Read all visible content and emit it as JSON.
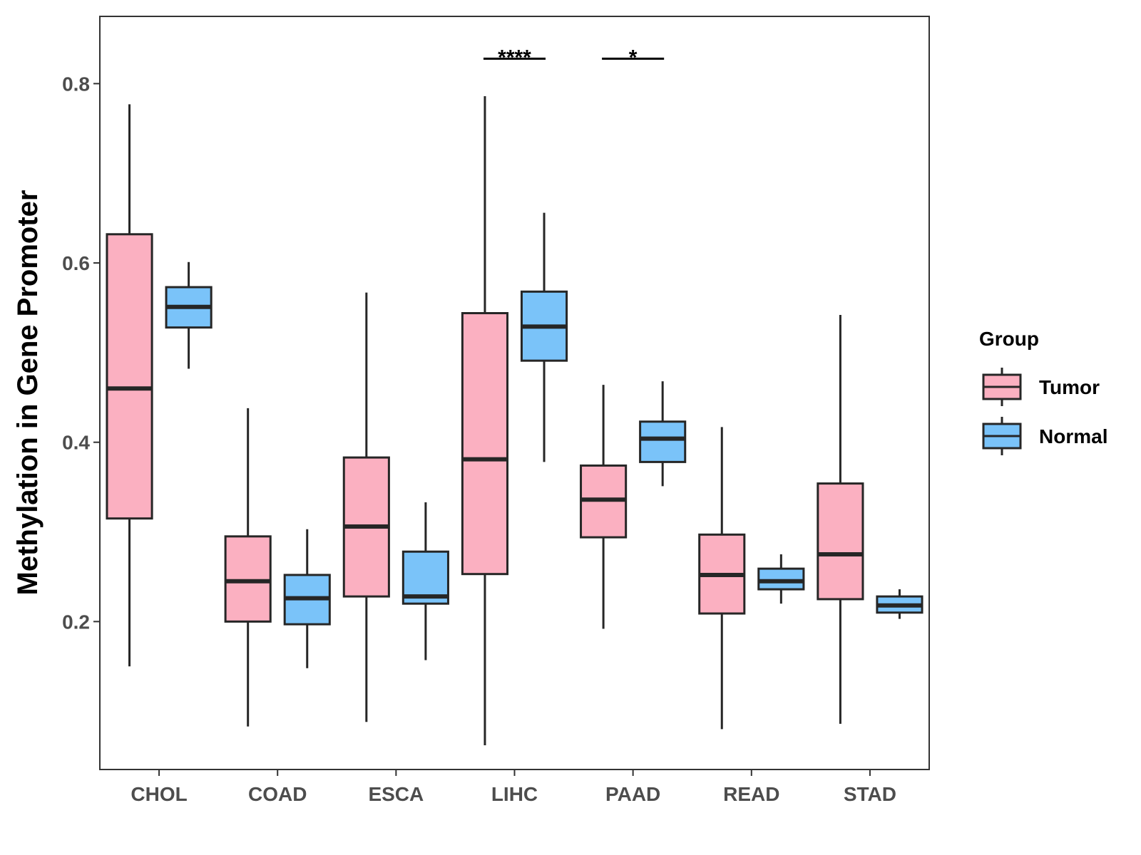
{
  "chart_data": {
    "type": "boxplot",
    "title": "",
    "xlabel": "",
    "ylabel": "Methylation in Gene Promoter",
    "ylim": [
      0.035,
      0.875
    ],
    "yticks": [
      0.2,
      0.4,
      0.6,
      0.8
    ],
    "ytick_labels": [
      "0.2",
      "0.4",
      "0.6",
      "0.8"
    ],
    "grid": false,
    "legend": {
      "title": "Group",
      "position": "right",
      "entries": [
        {
          "name": "Tumor",
          "color": "#fbb0c1"
        },
        {
          "name": "Normal",
          "color": "#7ac3f9"
        }
      ]
    },
    "outline_color": "#262626",
    "categories": [
      "CHOL",
      "COAD",
      "ESCA",
      "LIHC",
      "PAAD",
      "READ",
      "STAD"
    ],
    "series": [
      {
        "name": "Tumor",
        "color": "#fbb0c1",
        "boxes": [
          {
            "min": 0.15,
            "q1": 0.315,
            "median": 0.46,
            "q3": 0.632,
            "max": 0.777
          },
          {
            "min": 0.083,
            "q1": 0.2,
            "median": 0.245,
            "q3": 0.295,
            "max": 0.438
          },
          {
            "min": 0.088,
            "q1": 0.228,
            "median": 0.306,
            "q3": 0.383,
            "max": 0.567
          },
          {
            "min": 0.062,
            "q1": 0.253,
            "median": 0.381,
            "q3": 0.544,
            "max": 0.786
          },
          {
            "min": 0.192,
            "q1": 0.294,
            "median": 0.336,
            "q3": 0.374,
            "max": 0.464
          },
          {
            "min": 0.08,
            "q1": 0.209,
            "median": 0.252,
            "q3": 0.297,
            "max": 0.417
          },
          {
            "min": 0.086,
            "q1": 0.225,
            "median": 0.275,
            "q3": 0.354,
            "max": 0.542
          }
        ]
      },
      {
        "name": "Normal",
        "color": "#7ac3f9",
        "boxes": [
          {
            "min": 0.482,
            "q1": 0.528,
            "median": 0.551,
            "q3": 0.573,
            "max": 0.601
          },
          {
            "min": 0.148,
            "q1": 0.197,
            "median": 0.226,
            "q3": 0.252,
            "max": 0.303
          },
          {
            "min": 0.157,
            "q1": 0.22,
            "median": 0.228,
            "q3": 0.278,
            "max": 0.333
          },
          {
            "min": 0.378,
            "q1": 0.491,
            "median": 0.529,
            "q3": 0.568,
            "max": 0.656
          },
          {
            "min": 0.351,
            "q1": 0.378,
            "median": 0.404,
            "q3": 0.423,
            "max": 0.468
          },
          {
            "min": 0.22,
            "q1": 0.236,
            "median": 0.245,
            "q3": 0.259,
            "max": 0.275
          },
          {
            "min": 0.203,
            "q1": 0.21,
            "median": 0.218,
            "q3": 0.228,
            "max": 0.236
          }
        ]
      }
    ],
    "annotations": [
      {
        "category": "LIHC",
        "label": "****",
        "y": 0.831
      },
      {
        "category": "PAAD",
        "label": "*",
        "y": 0.831
      }
    ]
  }
}
